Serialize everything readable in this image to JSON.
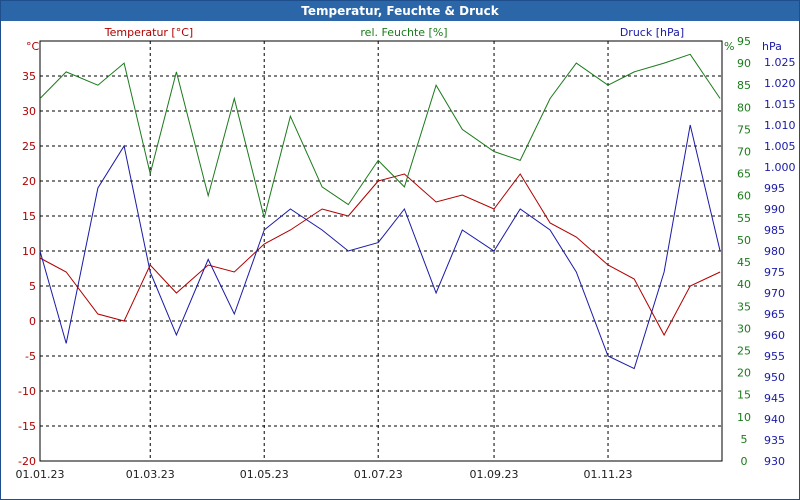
{
  "window": {
    "title": "Temperatur, Feuchte & Druck"
  },
  "colors": {
    "temperature": "#b00000",
    "humidity": "#1a7a1a",
    "pressure": "#1a1aa8",
    "grid": "#000000",
    "axis_text_x": "#202020"
  },
  "chart_data": {
    "type": "line",
    "title": "Temperatur, Feuchte & Druck",
    "x_ticks": [
      "01.01.23",
      "01.03.23",
      "01.05.23",
      "01.07.23",
      "01.09.23",
      "01.11.23"
    ],
    "x_range": [
      "01.01.23",
      "31.12.23"
    ],
    "grid": true,
    "axes": {
      "temperature": {
        "label": "Temperatur [°C]",
        "unit_label": "°C",
        "range": [
          -20,
          40
        ],
        "ticks": [
          35,
          30,
          25,
          20,
          15,
          10,
          5,
          0,
          -5,
          -10,
          -15,
          -20
        ]
      },
      "humidity": {
        "label": "rel. Feuchte [%]",
        "unit_label": "%",
        "range": [
          0,
          95
        ],
        "ticks": [
          95,
          90,
          85,
          80,
          75,
          70,
          65,
          60,
          55,
          50,
          45,
          40,
          35,
          30,
          25,
          20,
          15,
          10,
          5,
          0
        ]
      },
      "pressure": {
        "label": "Druck [hPa]",
        "unit_label": "hPa",
        "range": [
          930,
          1030
        ],
        "ticks": [
          1025,
          1020,
          1015,
          1010,
          1005,
          1000,
          995,
          990,
          985,
          980,
          975,
          970,
          965,
          960,
          955,
          950,
          945,
          940,
          935,
          930
        ]
      }
    },
    "series": [
      {
        "name": "Temperatur [°C]",
        "axis": "temperature",
        "x": [
          "01.01.23",
          "15.01.23",
          "01.02.23",
          "15.02.23",
          "01.03.23",
          "15.03.23",
          "01.04.23",
          "15.04.23",
          "01.05.23",
          "15.05.23",
          "01.06.23",
          "15.06.23",
          "01.07.23",
          "15.07.23",
          "01.08.23",
          "15.08.23",
          "01.09.23",
          "15.09.23",
          "01.10.23",
          "15.10.23",
          "01.11.23",
          "15.11.23",
          "01.12.23",
          "15.12.23",
          "31.12.23"
        ],
        "values": [
          9,
          7,
          1,
          0,
          8,
          4,
          8,
          7,
          11,
          13,
          16,
          15,
          20,
          21,
          17,
          18,
          16,
          21,
          14,
          12,
          8,
          6,
          -2,
          5,
          7
        ]
      },
      {
        "name": "rel. Feuchte [%]",
        "axis": "humidity",
        "x": [
          "01.01.23",
          "15.01.23",
          "01.02.23",
          "15.02.23",
          "01.03.23",
          "15.03.23",
          "01.04.23",
          "15.04.23",
          "01.05.23",
          "15.05.23",
          "01.06.23",
          "15.06.23",
          "01.07.23",
          "15.07.23",
          "01.08.23",
          "15.08.23",
          "01.09.23",
          "15.09.23",
          "01.10.23",
          "15.10.23",
          "01.11.23",
          "15.11.23",
          "01.12.23",
          "15.12.23",
          "31.12.23"
        ],
        "values": [
          82,
          88,
          85,
          90,
          65,
          88,
          60,
          82,
          55,
          78,
          62,
          58,
          68,
          62,
          85,
          75,
          70,
          68,
          82,
          90,
          85,
          88,
          90,
          92,
          82
        ]
      },
      {
        "name": "Druck [hPa]",
        "axis": "pressure",
        "x": [
          "01.01.23",
          "15.01.23",
          "01.02.23",
          "15.02.23",
          "01.03.23",
          "15.03.23",
          "01.04.23",
          "15.04.23",
          "01.05.23",
          "15.05.23",
          "01.06.23",
          "15.06.23",
          "01.07.23",
          "15.07.23",
          "01.08.23",
          "15.08.23",
          "01.09.23",
          "15.09.23",
          "01.10.23",
          "15.10.23",
          "01.11.23",
          "15.11.23",
          "01.12.23",
          "15.12.23",
          "31.12.23"
        ],
        "values": [
          980,
          958,
          995,
          1005,
          975,
          960,
          978,
          965,
          985,
          990,
          985,
          980,
          982,
          990,
          970,
          985,
          980,
          990,
          985,
          975,
          955,
          952,
          975,
          1010,
          980
        ]
      }
    ]
  }
}
